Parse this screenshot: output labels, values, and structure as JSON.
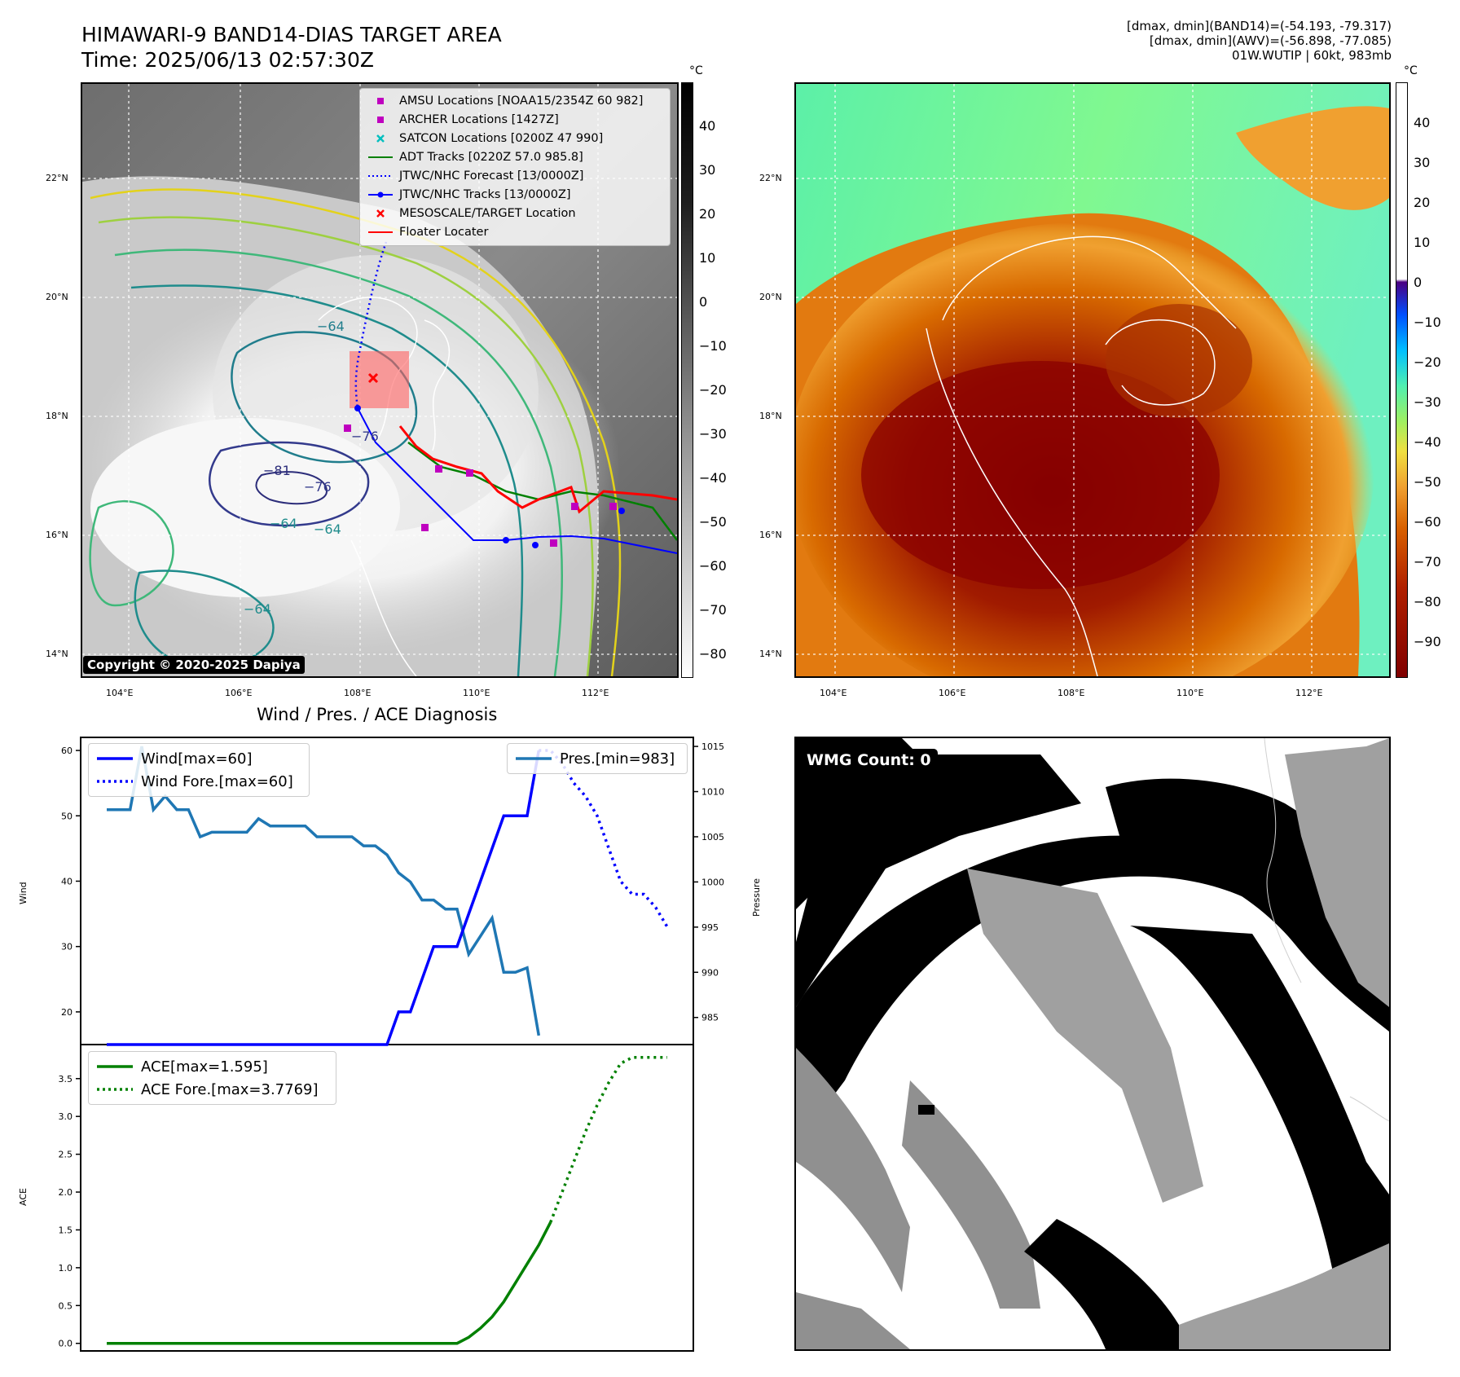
{
  "header": {
    "title_line1": "HIMAWARI-9 BAND14-DIAS TARGET AREA",
    "title_line2": "Time: 2025/06/13 02:57:30Z",
    "info_line1": "[dmax, dmin](BAND14)=(-54.193, -79.317)",
    "info_line2": "[dmax, dmin](AWV)=(-56.898, -77.085)",
    "info_line3": "01W.WUTIP | 60kt, 983mb"
  },
  "map": {
    "lat_labels": [
      "22°N",
      "20°N",
      "18°N",
      "16°N",
      "14°N"
    ],
    "lon_labels": [
      "104°E",
      "106°E",
      "108°E",
      "110°E",
      "112°E"
    ],
    "copyright": "Copyright © 2020-2025 Dapiya",
    "colorbar_unit": "°C",
    "colorbar_left_ticks": [
      "40",
      "30",
      "20",
      "10",
      "0",
      "−10",
      "−20",
      "−30",
      "−40",
      "−50",
      "−60",
      "−70",
      "−80"
    ],
    "colorbar_right_ticks": [
      "40",
      "30",
      "20",
      "10",
      "0",
      "−10",
      "−20",
      "−30",
      "−40",
      "−50",
      "−60",
      "−70",
      "−80",
      "−90"
    ],
    "contour_labels": [
      "−64",
      "−81",
      "−76",
      "−64",
      "−64",
      "−76",
      "−64"
    ],
    "legend": [
      {
        "label": "AMSU Locations [NOAA15/2354Z 60 982]",
        "marker": "square",
        "color": "#bf00bf"
      },
      {
        "label": "ARCHER Locations [1427Z]",
        "marker": "square",
        "color": "#bf00bf"
      },
      {
        "label": "SATCON Locations [0200Z 47 990]",
        "marker": "x",
        "color": "#00bfbf"
      },
      {
        "label": "ADT Tracks [0220Z 57.0 985.8]",
        "marker": "line",
        "color": "#008000"
      },
      {
        "label": "JTWC/NHC Forecast [13/0000Z]",
        "marker": "dotted",
        "color": "#0000ff"
      },
      {
        "label": "JTWC/NHC Tracks [13/0000Z]",
        "marker": "line-dot",
        "color": "#0000ff"
      },
      {
        "label": "MESOSCALE/TARGET Location",
        "marker": "x",
        "color": "#ff0000"
      },
      {
        "label": "Floater Locater",
        "marker": "line",
        "color": "#ff0000"
      }
    ]
  },
  "wmg": {
    "label": "WMG Count: 0"
  },
  "chart_data": [
    {
      "type": "line",
      "title": "Wind / Pres. / ACE Diagnosis",
      "ylabel": "Wind",
      "ylabel_right": "Pressure",
      "ylim": [
        15,
        62
      ],
      "ylim_right": [
        982,
        1016
      ],
      "yticks": [
        20,
        30,
        40,
        50,
        60
      ],
      "yticks_right": [
        985,
        990,
        995,
        1000,
        1005,
        1010,
        1015
      ],
      "x": [
        0,
        1,
        2,
        3,
        4,
        5,
        6,
        7,
        8,
        9,
        10,
        11,
        12,
        13,
        14,
        15,
        16,
        17,
        18,
        19,
        20,
        21,
        22,
        23,
        24,
        25,
        26,
        27,
        28,
        29,
        30,
        31,
        32,
        33,
        34,
        35,
        36,
        37,
        38,
        39,
        40,
        41,
        42,
        43,
        44,
        45,
        46,
        47,
        48
      ],
      "series": [
        {
          "name": "Wind[max=60]",
          "style": "solid",
          "color": "#0000ff",
          "values": [
            15,
            15,
            15,
            15,
            15,
            15,
            15,
            15,
            15,
            15,
            15,
            15,
            15,
            15,
            15,
            15,
            15,
            15,
            15,
            15,
            15,
            15,
            15,
            15,
            15,
            20,
            20,
            25,
            30,
            30,
            30,
            35,
            40,
            45,
            50,
            50,
            50,
            60,
            null,
            null,
            null,
            null,
            null,
            null,
            null,
            null,
            null,
            null,
            null
          ]
        },
        {
          "name": "Wind Fore.[max=60]",
          "style": "dotted",
          "color": "#0000ff",
          "values": [
            null,
            null,
            null,
            null,
            null,
            null,
            null,
            null,
            null,
            null,
            null,
            null,
            null,
            null,
            null,
            null,
            null,
            null,
            null,
            null,
            null,
            null,
            null,
            null,
            null,
            null,
            null,
            null,
            null,
            null,
            null,
            null,
            null,
            null,
            null,
            null,
            null,
            60,
            60,
            58,
            55,
            53,
            50,
            45,
            40,
            38,
            38,
            36,
            33
          ]
        },
        {
          "name": "Pres.[min=983]",
          "style": "solid",
          "color": "#1f77b4",
          "axis": "right",
          "values": [
            1008,
            1008,
            1008,
            1015,
            1008,
            1009.5,
            1008,
            1008,
            1005,
            1005.5,
            1005.5,
            1005.5,
            1005.5,
            1007,
            1006.2,
            1006.2,
            1006.2,
            1006.2,
            1005,
            1005,
            1005,
            1005,
            1004,
            1004,
            1003,
            1001,
            1000,
            998,
            998,
            997,
            997,
            992,
            994,
            996,
            990,
            990,
            990.5,
            983,
            null,
            null,
            null,
            null,
            null,
            null,
            null,
            null,
            null,
            null,
            null
          ]
        }
      ]
    },
    {
      "type": "line",
      "ylabel": "ACE",
      "ylim": [
        -0.1,
        3.95
      ],
      "yticks": [
        0.0,
        0.5,
        1.0,
        1.5,
        2.0,
        2.5,
        3.0,
        3.5
      ],
      "x": [
        0,
        1,
        2,
        3,
        4,
        5,
        6,
        7,
        8,
        9,
        10,
        11,
        12,
        13,
        14,
        15,
        16,
        17,
        18,
        19,
        20,
        21,
        22,
        23,
        24,
        25,
        26,
        27,
        28,
        29,
        30,
        31,
        32,
        33,
        34,
        35,
        36,
        37,
        38,
        39,
        40,
        41,
        42,
        43,
        44,
        45,
        46,
        47,
        48
      ],
      "series": [
        {
          "name": "ACE[max=1.595]",
          "style": "solid",
          "color": "#008000",
          "values": [
            0,
            0,
            0,
            0,
            0,
            0,
            0,
            0,
            0,
            0,
            0,
            0,
            0,
            0,
            0,
            0,
            0,
            0,
            0,
            0,
            0,
            0,
            0,
            0,
            0,
            0,
            0,
            0,
            0,
            0,
            0,
            0.08,
            0.2,
            0.35,
            0.55,
            0.8,
            1.05,
            1.3,
            1.6,
            null,
            null,
            null,
            null,
            null,
            null,
            null,
            null,
            null,
            null
          ]
        },
        {
          "name": "ACE Fore.[max=3.7769]",
          "style": "dotted",
          "color": "#008000",
          "values": [
            null,
            null,
            null,
            null,
            null,
            null,
            null,
            null,
            null,
            null,
            null,
            null,
            null,
            null,
            null,
            null,
            null,
            null,
            null,
            null,
            null,
            null,
            null,
            null,
            null,
            null,
            null,
            null,
            null,
            null,
            null,
            null,
            null,
            null,
            null,
            null,
            null,
            null,
            1.6,
            2.0,
            2.4,
            2.8,
            3.15,
            3.45,
            3.7,
            3.78,
            3.78,
            3.78,
            3.78
          ]
        }
      ]
    }
  ]
}
